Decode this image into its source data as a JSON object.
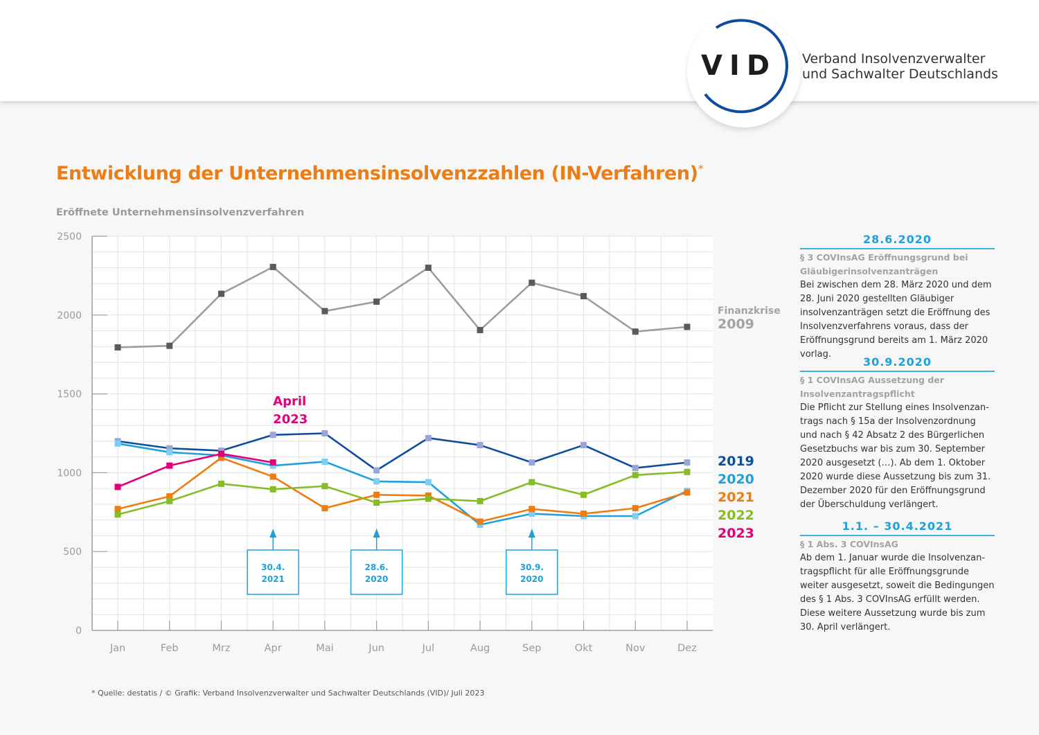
{
  "header": {
    "logo_text": "VID",
    "org_name_line1": "Verband Insolvenzverwalter",
    "org_name_line2": "und Sachwalter Deutschlands",
    "brand_color": "#0e4c9e"
  },
  "title": "Entwicklung der Unternehmensinsolvenzzahlen (IN-Verfahren)",
  "title_marker": "*",
  "subtitle": "Eröffnete Unternehmensinsolvenzverfahren",
  "chart_data": {
    "type": "line",
    "title": "Entwicklung der Unternehmensinsolvenzzahlen (IN-Verfahren)*",
    "ylabel": "Eröffnete Unternehmensinsolvenzverfahren",
    "xlabel": "",
    "categories": [
      "Jan",
      "Feb",
      "Mrz",
      "Apr",
      "Mai",
      "Jun",
      "Jul",
      "Aug",
      "Sep",
      "Okt",
      "Nov",
      "Dez"
    ],
    "ylim": [
      0,
      2500
    ],
    "yticks": [
      0,
      500,
      1000,
      1500,
      2000,
      2500
    ],
    "grid": true,
    "legend": "right",
    "series": [
      {
        "name": "2009",
        "label_line1": "Finanzkrise",
        "label_line2": "2009",
        "color": "#9d9d9c",
        "marker_color": "#5a5a5a",
        "values": [
          1795,
          1805,
          2135,
          2305,
          2025,
          2085,
          2300,
          1905,
          2205,
          2120,
          1895,
          1925
        ]
      },
      {
        "name": "2019",
        "color": "#0e4c9e",
        "marker_color": "#9aa6d8",
        "values": [
          1200,
          1155,
          1140,
          1240,
          1250,
          1015,
          1220,
          1175,
          1065,
          1175,
          1030,
          1065
        ]
      },
      {
        "name": "2020",
        "color": "#1ea0dc",
        "marker_color": "#80cdf2",
        "values": [
          1185,
          1130,
          1110,
          1045,
          1070,
          945,
          940,
          670,
          740,
          725,
          725,
          885
        ]
      },
      {
        "name": "2021",
        "color": "#ee7d11",
        "marker_color": "#ee7d11",
        "values": [
          770,
          850,
          1095,
          975,
          775,
          860,
          855,
          690,
          770,
          740,
          775,
          875
        ]
      },
      {
        "name": "2022",
        "color": "#86bc25",
        "marker_color": "#86bc25",
        "values": [
          735,
          820,
          930,
          895,
          915,
          810,
          835,
          820,
          940,
          860,
          985,
          1005
        ]
      },
      {
        "name": "2023",
        "color": "#e2007a",
        "marker_color": "#e2007a",
        "values": [
          910,
          1045,
          1120,
          1065,
          null,
          null,
          null,
          null,
          null,
          null,
          null,
          null
        ]
      }
    ],
    "annotations": [
      {
        "text_line1": "April",
        "text_line2": "2023",
        "color": "#e2007a",
        "month": "Apr"
      },
      {
        "text_line1": "30.4.",
        "text_line2": "2021",
        "color": "#1ea0dc",
        "month": "Apr",
        "type": "arrow-box"
      },
      {
        "text_line1": "28.6.",
        "text_line2": "2020",
        "color": "#1ea0dc",
        "month": "Jun",
        "type": "arrow-box"
      },
      {
        "text_line1": "30.9.",
        "text_line2": "2020",
        "color": "#1ea0dc",
        "month": "Sep",
        "type": "arrow-box"
      }
    ]
  },
  "sidebar": {
    "sections": [
      {
        "date": "28.6.2020",
        "heading": "§ 3 COVInsAG Eröffnungsgrund bei Gläubigerinsolvenzanträgen",
        "body": "Bei zwischen dem 28. März 2020 und dem 28. Juni 2020 gestellten Gläubiger insolvenz­anträgen setzt die Eröffnung des Insolvenz­verfahrens voraus, dass der Eröffnungsgrund bereits am 1. März 2020 vorlag."
      },
      {
        "date": "30.9.2020",
        "heading": "§ 1 COVInsAG Aussetzung der Insolvenz­antragspflicht",
        "body": "Die Pflicht zur Stellung eines Insolvenzan­trags nach § 15a der Insolvenzordnung und nach § 42 Absatz 2 des Bürgerlichen Gesetzbuchs war bis zum 30. September 2020 ausgesetzt (…). Ab dem 1. Oktober 2020 wurde diese Aussetzung bis zum 31. Dezember 2020 für den Eröffnungs­grund der Überschuldung verlängert."
      },
      {
        "date": "1.1. – 30.4.2021",
        "heading": "§ 1 Abs. 3 COVInsAG",
        "body": "Ab dem 1. Januar wurde die Insolvenzan­tragspflicht für alle Eröffnungsgrunde weiter ausgesetzt, soweit die Bedingungen des § 1 Abs. 3 COVInsAG erfüllt werden. Diese weitere Aussetzung wurde bis zum 30. April verlängert."
      }
    ]
  },
  "footer": "* Quelle: destatis / © Grafik: Verband Insolvenzverwalter und Sachwalter Deutschlands (VID)/ Juli 2023"
}
